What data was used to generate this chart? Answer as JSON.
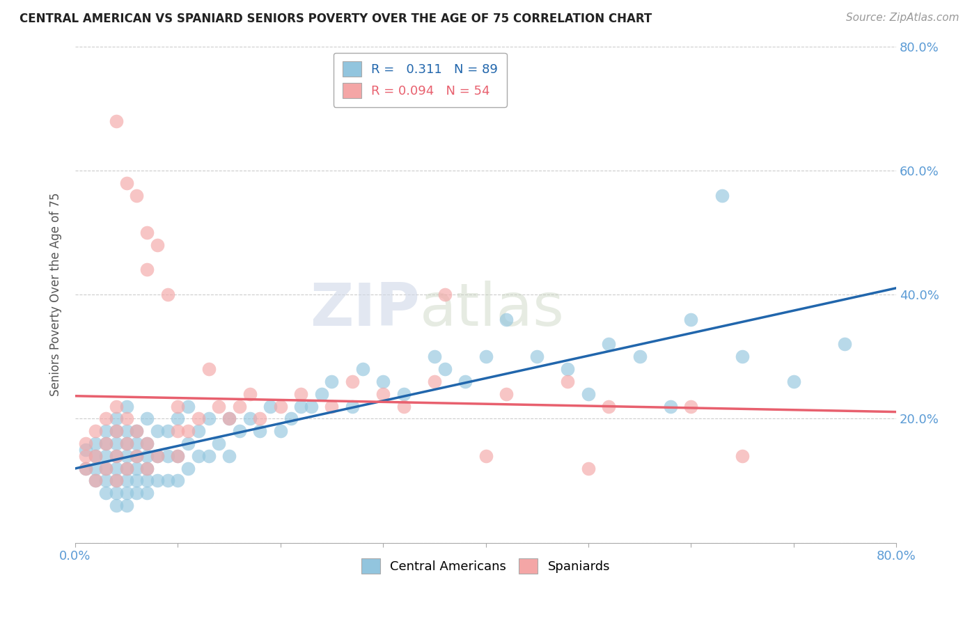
{
  "title": "CENTRAL AMERICAN VS SPANIARD SENIORS POVERTY OVER THE AGE OF 75 CORRELATION CHART",
  "source": "Source: ZipAtlas.com",
  "ylabel": "Seniors Poverty Over the Age of 75",
  "xlim": [
    0.0,
    0.8
  ],
  "ylim": [
    0.0,
    0.8
  ],
  "blue_R": 0.311,
  "blue_N": 89,
  "pink_R": 0.094,
  "pink_N": 54,
  "blue_color": "#92c5de",
  "pink_color": "#f4a6a6",
  "blue_line_color": "#2166ac",
  "pink_line_color": "#e8606e",
  "background_color": "#ffffff",
  "grid_color": "#cccccc",
  "blue_x": [
    0.01,
    0.01,
    0.02,
    0.02,
    0.02,
    0.02,
    0.03,
    0.03,
    0.03,
    0.03,
    0.03,
    0.03,
    0.04,
    0.04,
    0.04,
    0.04,
    0.04,
    0.04,
    0.04,
    0.04,
    0.05,
    0.05,
    0.05,
    0.05,
    0.05,
    0.05,
    0.05,
    0.05,
    0.06,
    0.06,
    0.06,
    0.06,
    0.06,
    0.06,
    0.07,
    0.07,
    0.07,
    0.07,
    0.07,
    0.07,
    0.08,
    0.08,
    0.08,
    0.09,
    0.09,
    0.09,
    0.1,
    0.1,
    0.1,
    0.11,
    0.11,
    0.11,
    0.12,
    0.12,
    0.13,
    0.13,
    0.14,
    0.15,
    0.15,
    0.16,
    0.17,
    0.18,
    0.19,
    0.2,
    0.21,
    0.22,
    0.23,
    0.24,
    0.25,
    0.27,
    0.28,
    0.3,
    0.32,
    0.35,
    0.36,
    0.38,
    0.4,
    0.42,
    0.45,
    0.48,
    0.5,
    0.52,
    0.55,
    0.58,
    0.6,
    0.63,
    0.65,
    0.7,
    0.75
  ],
  "blue_y": [
    0.12,
    0.15,
    0.1,
    0.12,
    0.14,
    0.16,
    0.08,
    0.1,
    0.12,
    0.14,
    0.16,
    0.18,
    0.06,
    0.08,
    0.1,
    0.12,
    0.14,
    0.16,
    0.18,
    0.2,
    0.06,
    0.08,
    0.1,
    0.12,
    0.14,
    0.16,
    0.18,
    0.22,
    0.08,
    0.1,
    0.12,
    0.14,
    0.16,
    0.18,
    0.08,
    0.1,
    0.12,
    0.14,
    0.16,
    0.2,
    0.1,
    0.14,
    0.18,
    0.1,
    0.14,
    0.18,
    0.1,
    0.14,
    0.2,
    0.12,
    0.16,
    0.22,
    0.14,
    0.18,
    0.14,
    0.2,
    0.16,
    0.14,
    0.2,
    0.18,
    0.2,
    0.18,
    0.22,
    0.18,
    0.2,
    0.22,
    0.22,
    0.24,
    0.26,
    0.22,
    0.28,
    0.26,
    0.24,
    0.3,
    0.28,
    0.26,
    0.3,
    0.36,
    0.3,
    0.28,
    0.24,
    0.32,
    0.3,
    0.22,
    0.36,
    0.56,
    0.3,
    0.26,
    0.32
  ],
  "pink_x": [
    0.01,
    0.01,
    0.01,
    0.02,
    0.02,
    0.02,
    0.03,
    0.03,
    0.03,
    0.04,
    0.04,
    0.04,
    0.04,
    0.04,
    0.05,
    0.05,
    0.05,
    0.05,
    0.06,
    0.06,
    0.06,
    0.07,
    0.07,
    0.07,
    0.07,
    0.08,
    0.08,
    0.09,
    0.1,
    0.1,
    0.1,
    0.11,
    0.12,
    0.13,
    0.14,
    0.15,
    0.16,
    0.17,
    0.18,
    0.2,
    0.22,
    0.25,
    0.27,
    0.3,
    0.32,
    0.35,
    0.36,
    0.4,
    0.42,
    0.48,
    0.5,
    0.52,
    0.6,
    0.65
  ],
  "pink_y": [
    0.12,
    0.14,
    0.16,
    0.1,
    0.14,
    0.18,
    0.12,
    0.16,
    0.2,
    0.1,
    0.14,
    0.18,
    0.22,
    0.68,
    0.12,
    0.16,
    0.2,
    0.58,
    0.14,
    0.18,
    0.56,
    0.12,
    0.16,
    0.44,
    0.5,
    0.14,
    0.48,
    0.4,
    0.14,
    0.18,
    0.22,
    0.18,
    0.2,
    0.28,
    0.22,
    0.2,
    0.22,
    0.24,
    0.2,
    0.22,
    0.24,
    0.22,
    0.26,
    0.24,
    0.22,
    0.26,
    0.4,
    0.14,
    0.24,
    0.26,
    0.12,
    0.22,
    0.22,
    0.14
  ]
}
